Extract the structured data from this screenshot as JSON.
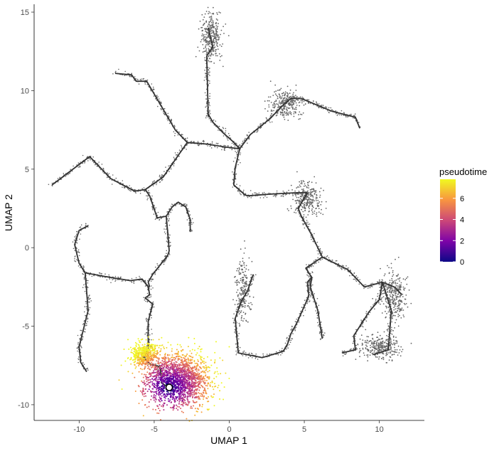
{
  "chart_data": {
    "type": "scatter",
    "xlabel": "UMAP 1",
    "ylabel": "UMAP 2",
    "xlim": [
      -13,
      13
    ],
    "ylim": [
      -11,
      15.5
    ],
    "xticks": [
      -10,
      -5,
      0,
      5,
      10
    ],
    "yticks": [
      -10,
      -5,
      0,
      5,
      10,
      15
    ],
    "grid": false,
    "legend": {
      "title": "pseudotime",
      "placement": "right",
      "colorbar_ticks": [
        0,
        2,
        4,
        6
      ],
      "range": [
        0,
        7.8
      ],
      "colors": [
        "#0d0887",
        "#7e03a8",
        "#cc4778",
        "#f89540",
        "#f0f921"
      ]
    },
    "point_color_uncolored": "#666666",
    "trajectory_color": "#333333",
    "root_node": {
      "x": -4.0,
      "y": -8.9
    },
    "trajectory": [
      [
        [
          -11.8,
          4.0
        ],
        [
          -9.3,
          5.8
        ],
        [
          -7.9,
          4.4
        ],
        [
          -6.3,
          3.6
        ],
        [
          -5.6,
          3.7
        ],
        [
          -4.4,
          4.5
        ],
        [
          -2.8,
          6.7
        ]
      ],
      [
        [
          -7.6,
          11.1
        ],
        [
          -6.5,
          11.0
        ],
        [
          -6.2,
          10.6
        ],
        [
          -5.5,
          10.6
        ],
        [
          -3.6,
          7.5
        ],
        [
          -2.8,
          6.7
        ]
      ],
      [
        [
          -2.8,
          6.7
        ],
        [
          -1.5,
          6.6
        ],
        [
          -0.2,
          6.4
        ],
        [
          0.7,
          6.3
        ]
      ],
      [
        [
          -1.4,
          14.0
        ],
        [
          -1.1,
          12.8
        ],
        [
          -1.5,
          12.2
        ],
        [
          -1.4,
          8.4
        ],
        [
          -1.4,
          8.5
        ],
        [
          -1.1,
          8.0
        ],
        [
          -0.4,
          7.3
        ],
        [
          0.2,
          6.8
        ],
        [
          0.7,
          6.3
        ]
      ],
      [
        [
          0.7,
          6.3
        ],
        [
          1.4,
          7.2
        ],
        [
          2.7,
          8.2
        ],
        [
          3.5,
          9.0
        ],
        [
          4.1,
          9.5
        ],
        [
          4.8,
          9.5
        ]
      ],
      [
        [
          4.8,
          9.5
        ],
        [
          6.8,
          8.7
        ],
        [
          8.4,
          8.3
        ],
        [
          8.7,
          7.6
        ]
      ],
      [
        [
          0.7,
          6.3
        ],
        [
          0.4,
          5.1
        ],
        [
          0.3,
          4.0
        ],
        [
          1.0,
          3.4
        ],
        [
          1.2,
          3.3
        ],
        [
          2.6,
          3.4
        ],
        [
          4.5,
          3.5
        ],
        [
          5.2,
          3.5
        ]
      ],
      [
        [
          5.2,
          3.5
        ],
        [
          4.6,
          2.5
        ],
        [
          4.8,
          2.0
        ],
        [
          5.5,
          0.8
        ],
        [
          6.2,
          -0.6
        ]
      ],
      [
        [
          6.2,
          -0.6
        ],
        [
          5.1,
          -1.3
        ],
        [
          5.5,
          -1.9
        ],
        [
          5.4,
          -2.5
        ],
        [
          5.9,
          -4.0
        ],
        [
          6.2,
          -5.8
        ]
      ],
      [
        [
          6.2,
          -0.6
        ],
        [
          7.9,
          -1.4
        ],
        [
          8.4,
          -1.9
        ],
        [
          9.0,
          -2.5
        ],
        [
          10.2,
          -2.2
        ],
        [
          11.0,
          -2.5
        ],
        [
          11.5,
          -3.0
        ]
      ],
      [
        [
          10.2,
          -2.2
        ],
        [
          10.0,
          -3.3
        ],
        [
          9.3,
          -4.1
        ],
        [
          8.3,
          -5.6
        ],
        [
          8.4,
          -6.5
        ],
        [
          7.5,
          -6.7
        ]
      ],
      [
        [
          10.2,
          -2.2
        ],
        [
          10.8,
          -4.0
        ],
        [
          10.6,
          -6.5
        ],
        [
          9.6,
          -6.8
        ]
      ],
      [
        [
          5.5,
          -1.9
        ],
        [
          5.2,
          -2.2
        ],
        [
          5.3,
          -3.0
        ],
        [
          5.2,
          -3.3
        ],
        [
          4.5,
          -4.8
        ],
        [
          4.1,
          -5.5
        ],
        [
          3.9,
          -6.1
        ],
        [
          3.6,
          -6.6
        ],
        [
          2.2,
          -7.0
        ],
        [
          0.6,
          -6.7
        ]
      ],
      [
        [
          0.6,
          -6.7
        ],
        [
          0.4,
          -4.5
        ],
        [
          0.8,
          -3.4
        ],
        [
          1.2,
          -2.8
        ],
        [
          1.6,
          -1.7
        ]
      ],
      [
        [
          -5.6,
          3.7
        ],
        [
          -5.3,
          3.3
        ],
        [
          -4.8,
          1.9
        ],
        [
          -4.2,
          2.0
        ],
        [
          -3.8,
          2.6
        ],
        [
          -3.4,
          2.9
        ],
        [
          -2.9,
          2.6
        ],
        [
          -2.6,
          1.8
        ],
        [
          -2.6,
          1.0
        ]
      ],
      [
        [
          -4.2,
          2.0
        ],
        [
          -4.1,
          1.0
        ],
        [
          -4.0,
          -0.2
        ],
        [
          -4.1,
          -0.5
        ]
      ],
      [
        [
          -4.1,
          -0.5
        ],
        [
          -5.1,
          -1.7
        ],
        [
          -5.4,
          -2.2
        ],
        [
          -5.3,
          -2.5
        ]
      ],
      [
        [
          -9.4,
          1.4
        ],
        [
          -10.0,
          1.1
        ],
        [
          -10.3,
          0.2
        ],
        [
          -10.0,
          -1.0
        ],
        [
          -9.6,
          -1.6
        ],
        [
          -9.4,
          -4.0
        ],
        [
          -10.0,
          -6.3
        ],
        [
          -9.9,
          -7.3
        ],
        [
          -9.5,
          -7.9
        ]
      ],
      [
        [
          -9.6,
          -1.6
        ],
        [
          -8.5,
          -1.8
        ],
        [
          -6.6,
          -2.1
        ],
        [
          -5.8,
          -2.0
        ],
        [
          -5.4,
          -2.5
        ],
        [
          -5.3,
          -3.0
        ],
        [
          -5.6,
          -3.2
        ],
        [
          -5.1,
          -3.6
        ],
        [
          -5.4,
          -4.7
        ],
        [
          -5.4,
          -6.5
        ],
        [
          -5.7,
          -7.0
        ],
        [
          -5.3,
          -7.4
        ],
        [
          -4.6,
          -7.6
        ],
        [
          -4.5,
          -8.6
        ],
        [
          -4.1,
          -8.9
        ]
      ]
    ],
    "clusters": [
      {
        "shape": "blob",
        "cx": -1.2,
        "cy": 13.4,
        "sx": 0.35,
        "sy": 0.75,
        "n": 300
      },
      {
        "shape": "blob",
        "cx": 3.8,
        "cy": 9.2,
        "sx": 0.5,
        "sy": 0.45,
        "n": 280
      },
      {
        "shape": "blob",
        "cx": 5.2,
        "cy": 3.1,
        "sx": 0.45,
        "sy": 0.55,
        "n": 240
      },
      {
        "shape": "blob",
        "cx": 11.0,
        "cy": -3.0,
        "sx": 0.45,
        "sy": 0.85,
        "n": 280
      },
      {
        "shape": "blob",
        "cx": 10.0,
        "cy": -6.3,
        "sx": 0.75,
        "sy": 0.4,
        "n": 280
      },
      {
        "shape": "blob",
        "cx": 0.9,
        "cy": -2.8,
        "sx": 0.28,
        "sy": 1.1,
        "n": 200
      }
    ],
    "pseudotime_region": {
      "cx": -3.4,
      "cy": -8.4,
      "sx": 1.1,
      "sy": 0.85,
      "n": 2300
    }
  }
}
